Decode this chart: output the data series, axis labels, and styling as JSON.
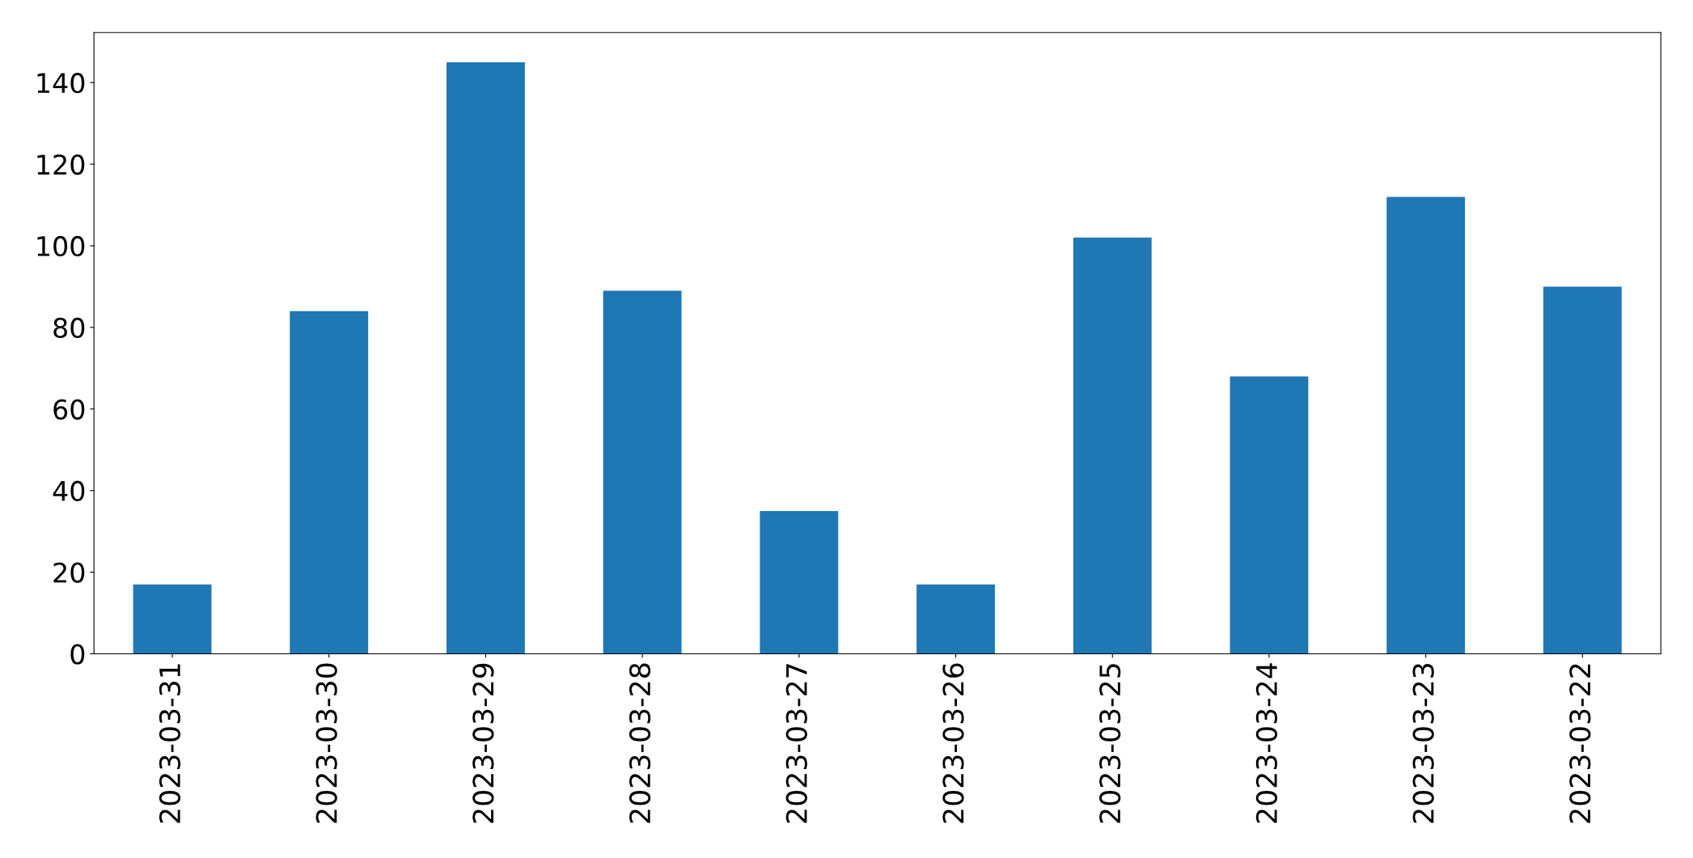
{
  "chart_data": {
    "type": "bar",
    "categories": [
      "2023-03-31",
      "2023-03-30",
      "2023-03-29",
      "2023-03-28",
      "2023-03-27",
      "2023-03-26",
      "2023-03-25",
      "2023-03-24",
      "2023-03-23",
      "2023-03-22"
    ],
    "values": [
      17,
      84,
      145,
      89,
      35,
      17,
      102,
      68,
      112,
      90
    ],
    "color": "#1f77b4",
    "ylim": [
      0,
      152.25
    ],
    "yticks": [
      0,
      20,
      40,
      60,
      80,
      100,
      120,
      140
    ],
    "grid": false
  }
}
